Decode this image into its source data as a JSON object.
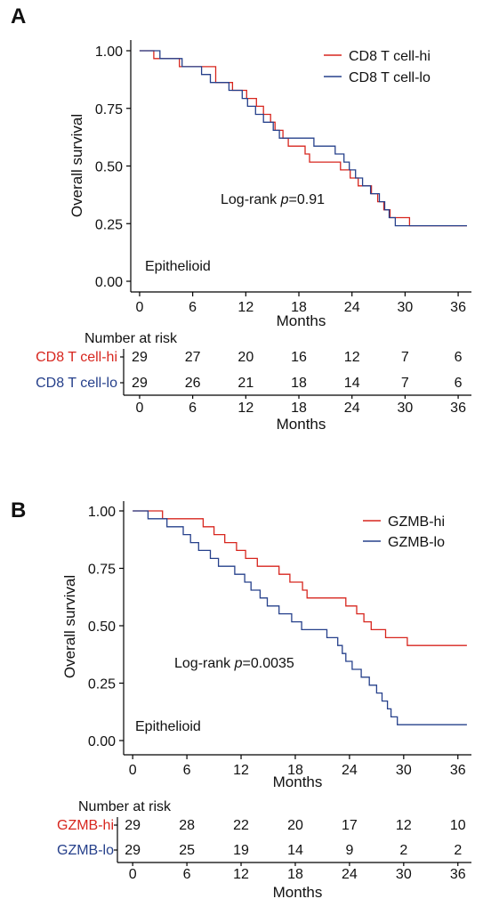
{
  "colors": {
    "hi": "#d7261e",
    "lo": "#26408b",
    "axis": "#000000"
  },
  "chart_data": [
    {
      "panel": "A",
      "type": "line",
      "subtype": "kaplan-meier",
      "ylabel": "Overall survival",
      "xlabel": "Months",
      "xlim": [
        0,
        37
      ],
      "ylim": [
        0,
        1
      ],
      "xticks": [
        "0",
        "6",
        "12",
        "18",
        "24",
        "30",
        "36"
      ],
      "yticks": [
        "0.00",
        "0.25",
        "0.50",
        "0.75",
        "1.00"
      ],
      "annotation_prefix": "Log-rank ",
      "annotation_p": "p",
      "annotation_value": "=0.91",
      "subgroup_label": "Epithelioid",
      "legend_position": "top-right",
      "series": [
        {
          "name": "CD8 T cell-hi",
          "color_key": "hi",
          "steps": [
            [
              0,
              1.0
            ],
            [
              1.6,
              0.966
            ],
            [
              4.5,
              0.931
            ],
            [
              8.6,
              0.862
            ],
            [
              10.5,
              0.828
            ],
            [
              12.1,
              0.793
            ],
            [
              13.2,
              0.759
            ],
            [
              14.0,
              0.724
            ],
            [
              14.8,
              0.69
            ],
            [
              15.3,
              0.655
            ],
            [
              16.2,
              0.621
            ],
            [
              16.8,
              0.586
            ],
            [
              18.7,
              0.552
            ],
            [
              19.2,
              0.517
            ],
            [
              22.7,
              0.483
            ],
            [
              23.8,
              0.448
            ],
            [
              24.7,
              0.414
            ],
            [
              26.2,
              0.38
            ],
            [
              26.9,
              0.345
            ],
            [
              27.6,
              0.31
            ],
            [
              28.3,
              0.276
            ],
            [
              30.5,
              0.241
            ],
            [
              37,
              0.241
            ]
          ]
        },
        {
          "name": "CD8 T cell-lo",
          "color_key": "lo",
          "steps": [
            [
              0,
              1.0
            ],
            [
              2.3,
              0.966
            ],
            [
              4.8,
              0.931
            ],
            [
              7.0,
              0.897
            ],
            [
              8.0,
              0.862
            ],
            [
              10.1,
              0.828
            ],
            [
              11.6,
              0.793
            ],
            [
              12.2,
              0.759
            ],
            [
              13.1,
              0.724
            ],
            [
              14.0,
              0.69
            ],
            [
              15.1,
              0.655
            ],
            [
              15.8,
              0.621
            ],
            [
              19.7,
              0.586
            ],
            [
              22.1,
              0.552
            ],
            [
              23.1,
              0.517
            ],
            [
              23.7,
              0.483
            ],
            [
              24.4,
              0.448
            ],
            [
              25.2,
              0.414
            ],
            [
              26.1,
              0.38
            ],
            [
              27.1,
              0.345
            ],
            [
              27.7,
              0.31
            ],
            [
              28.2,
              0.276
            ],
            [
              28.9,
              0.241
            ],
            [
              37,
              0.241
            ]
          ]
        }
      ],
      "risk_table": {
        "title": "Number at risk",
        "xlabel": "Months",
        "times": [
          "0",
          "6",
          "12",
          "18",
          "24",
          "30",
          "36"
        ],
        "groups": [
          {
            "name": "CD8 T cell-hi",
            "color_key": "hi",
            "counts": [
              "29",
              "27",
              "20",
              "16",
              "12",
              "7",
              "6"
            ]
          },
          {
            "name": "CD8 T cell-lo",
            "color_key": "lo",
            "counts": [
              "29",
              "26",
              "21",
              "18",
              "14",
              "7",
              "6"
            ]
          }
        ]
      }
    },
    {
      "panel": "B",
      "type": "line",
      "subtype": "kaplan-meier",
      "ylabel": "Overall survival",
      "xlabel": "Months",
      "xlim": [
        0,
        37
      ],
      "ylim": [
        0,
        1
      ],
      "xticks": [
        "0",
        "6",
        "12",
        "18",
        "24",
        "30",
        "36"
      ],
      "yticks": [
        "0.00",
        "0.25",
        "0.50",
        "0.75",
        "1.00"
      ],
      "annotation_prefix": "Log-rank ",
      "annotation_p": "p",
      "annotation_value": "=0.0035",
      "subgroup_label": "Epithelioid",
      "legend_position": "top-right",
      "series": [
        {
          "name": "GZMB-hi",
          "color_key": "hi",
          "steps": [
            [
              0,
              1.0
            ],
            [
              3.3,
              0.966
            ],
            [
              7.8,
              0.931
            ],
            [
              9.0,
              0.897
            ],
            [
              10.2,
              0.862
            ],
            [
              11.5,
              0.828
            ],
            [
              12.5,
              0.793
            ],
            [
              13.8,
              0.759
            ],
            [
              16.2,
              0.724
            ],
            [
              17.4,
              0.69
            ],
            [
              18.8,
              0.655
            ],
            [
              19.3,
              0.621
            ],
            [
              23.6,
              0.586
            ],
            [
              24.8,
              0.552
            ],
            [
              25.6,
              0.517
            ],
            [
              26.4,
              0.483
            ],
            [
              28.0,
              0.448
            ],
            [
              30.4,
              0.414
            ],
            [
              37,
              0.414
            ]
          ]
        },
        {
          "name": "GZMB-lo",
          "color_key": "lo",
          "steps": [
            [
              0,
              1.0
            ],
            [
              1.7,
              0.966
            ],
            [
              3.8,
              0.931
            ],
            [
              5.6,
              0.897
            ],
            [
              6.4,
              0.862
            ],
            [
              7.3,
              0.828
            ],
            [
              8.6,
              0.793
            ],
            [
              9.5,
              0.759
            ],
            [
              11.3,
              0.724
            ],
            [
              12.4,
              0.69
            ],
            [
              13.1,
              0.655
            ],
            [
              14.1,
              0.621
            ],
            [
              14.9,
              0.586
            ],
            [
              16.2,
              0.552
            ],
            [
              17.6,
              0.517
            ],
            [
              18.7,
              0.483
            ],
            [
              21.5,
              0.448
            ],
            [
              22.7,
              0.414
            ],
            [
              23.2,
              0.379
            ],
            [
              23.6,
              0.345
            ],
            [
              24.3,
              0.31
            ],
            [
              25.3,
              0.276
            ],
            [
              26.2,
              0.241
            ],
            [
              27.0,
              0.207
            ],
            [
              27.6,
              0.172
            ],
            [
              28.2,
              0.138
            ],
            [
              28.6,
              0.103
            ],
            [
              29.3,
              0.069
            ],
            [
              37,
              0.069
            ]
          ]
        }
      ],
      "risk_table": {
        "title": "Number at risk",
        "xlabel": "Months",
        "times": [
          "0",
          "6",
          "12",
          "18",
          "24",
          "30",
          "36"
        ],
        "groups": [
          {
            "name": "GZMB-hi",
            "color_key": "hi",
            "counts": [
              "29",
              "28",
              "22",
              "20",
              "17",
              "12",
              "10"
            ]
          },
          {
            "name": "GZMB-lo",
            "color_key": "lo",
            "counts": [
              "29",
              "25",
              "19",
              "14",
              "9",
              "2",
              "2"
            ]
          }
        ]
      }
    }
  ]
}
